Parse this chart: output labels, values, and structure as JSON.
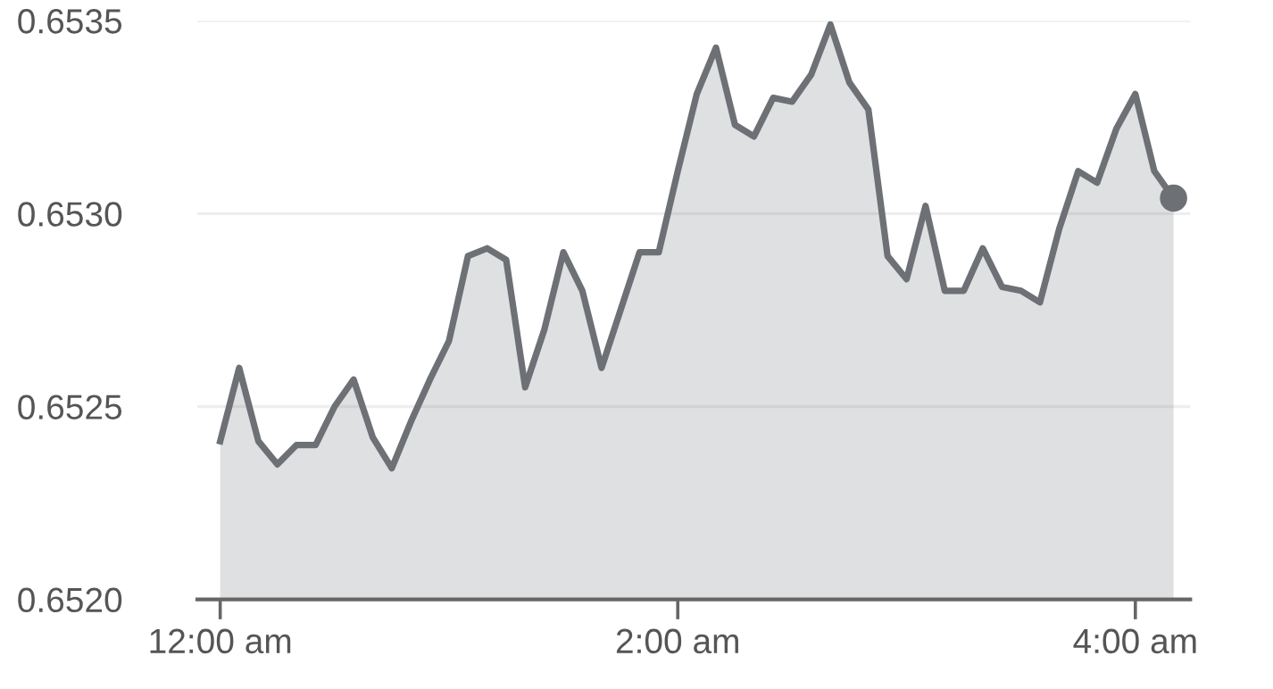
{
  "chart_data": {
    "type": "area",
    "x": [
      0,
      0.083,
      0.167,
      0.25,
      0.333,
      0.417,
      0.5,
      0.583,
      0.667,
      0.75,
      0.833,
      0.917,
      1,
      1.083,
      1.167,
      1.25,
      1.333,
      1.417,
      1.5,
      1.583,
      1.667,
      1.75,
      1.833,
      1.917,
      2,
      2.083,
      2.167,
      2.25,
      2.333,
      2.417,
      2.5,
      2.583,
      2.667,
      2.75,
      2.833,
      2.917,
      3,
      3.083,
      3.167,
      3.25,
      3.333,
      3.417,
      3.5,
      3.583,
      3.667,
      3.75,
      3.833,
      3.917,
      4,
      4.083,
      4.167
    ],
    "series": [
      {
        "color": "#6d7075",
        "values": [
          0.65241,
          0.6526,
          0.65241,
          0.65235,
          0.6524,
          0.6524,
          0.6525,
          0.65257,
          0.65242,
          0.65234,
          0.65246,
          0.65257,
          0.65267,
          0.65289,
          0.65291,
          0.65288,
          0.65255,
          0.6527,
          0.6529,
          0.6528,
          0.6526,
          0.65275,
          0.6529,
          0.6529,
          0.65311,
          0.65331,
          0.65343,
          0.65323,
          0.6532,
          0.6533,
          0.65329,
          0.65336,
          0.65349,
          0.65334,
          0.65327,
          0.65289,
          0.65283,
          0.65302,
          0.6528,
          0.6528,
          0.65291,
          0.65281,
          0.6528,
          0.65277,
          0.65296,
          0.65311,
          0.65308,
          0.65322,
          0.65331,
          0.65311,
          0.65304
        ]
      }
    ],
    "xlim": [
      -0.1,
      4.24
    ],
    "xticks": [
      {
        "value": 0,
        "label": "12:00 am"
      },
      {
        "value": 2,
        "label": "2:00 am"
      },
      {
        "value": 4,
        "label": "4:00 am"
      }
    ],
    "ylim": [
      0.652,
      0.6535
    ],
    "yticks": [
      {
        "value": 0.652,
        "label": "0.6520"
      },
      {
        "value": 0.6525,
        "label": "0.6525"
      },
      {
        "value": 0.653,
        "label": "0.6530"
      },
      {
        "value": 0.6535,
        "label": "0.6535"
      }
    ],
    "grid": "y",
    "legend": false
  }
}
